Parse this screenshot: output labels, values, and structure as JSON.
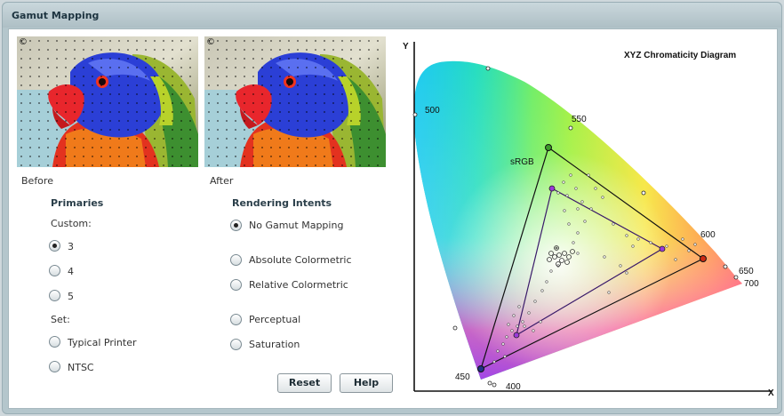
{
  "window": {
    "title": "Gamut Mapping"
  },
  "images": {
    "before": {
      "caption": "Before",
      "mark": "©"
    },
    "after": {
      "caption": "After",
      "mark": "©"
    }
  },
  "primaries": {
    "heading": "Primaries",
    "custom_label": "Custom:",
    "options": [
      "3",
      "4",
      "5"
    ],
    "set_label": "Set:",
    "set_options": [
      "Typical Printer",
      "NTSC"
    ],
    "selected": "3"
  },
  "intents": {
    "heading": "Rendering Intents",
    "options": [
      "No Gamut Mapping",
      "Absolute Colormetric",
      "Relative Colormetric",
      "Perceptual",
      "Saturation"
    ],
    "selected": "No Gamut Mapping"
  },
  "buttons": {
    "reset": "Reset",
    "help": "Help"
  },
  "diagram": {
    "title": "XYZ Chromaticity Diagram",
    "x_axis": "X",
    "y_axis": "Y",
    "wavelength_labels": [
      "400",
      "450",
      "500",
      "550",
      "600",
      "650",
      "700"
    ],
    "srgb_label": "sRGB",
    "colors": {
      "srgb_red": "#cc2a14",
      "srgb_green": "#3c9a2a",
      "srgb_blue": "#223388",
      "custom_vertex": "#9a3ad8"
    }
  }
}
